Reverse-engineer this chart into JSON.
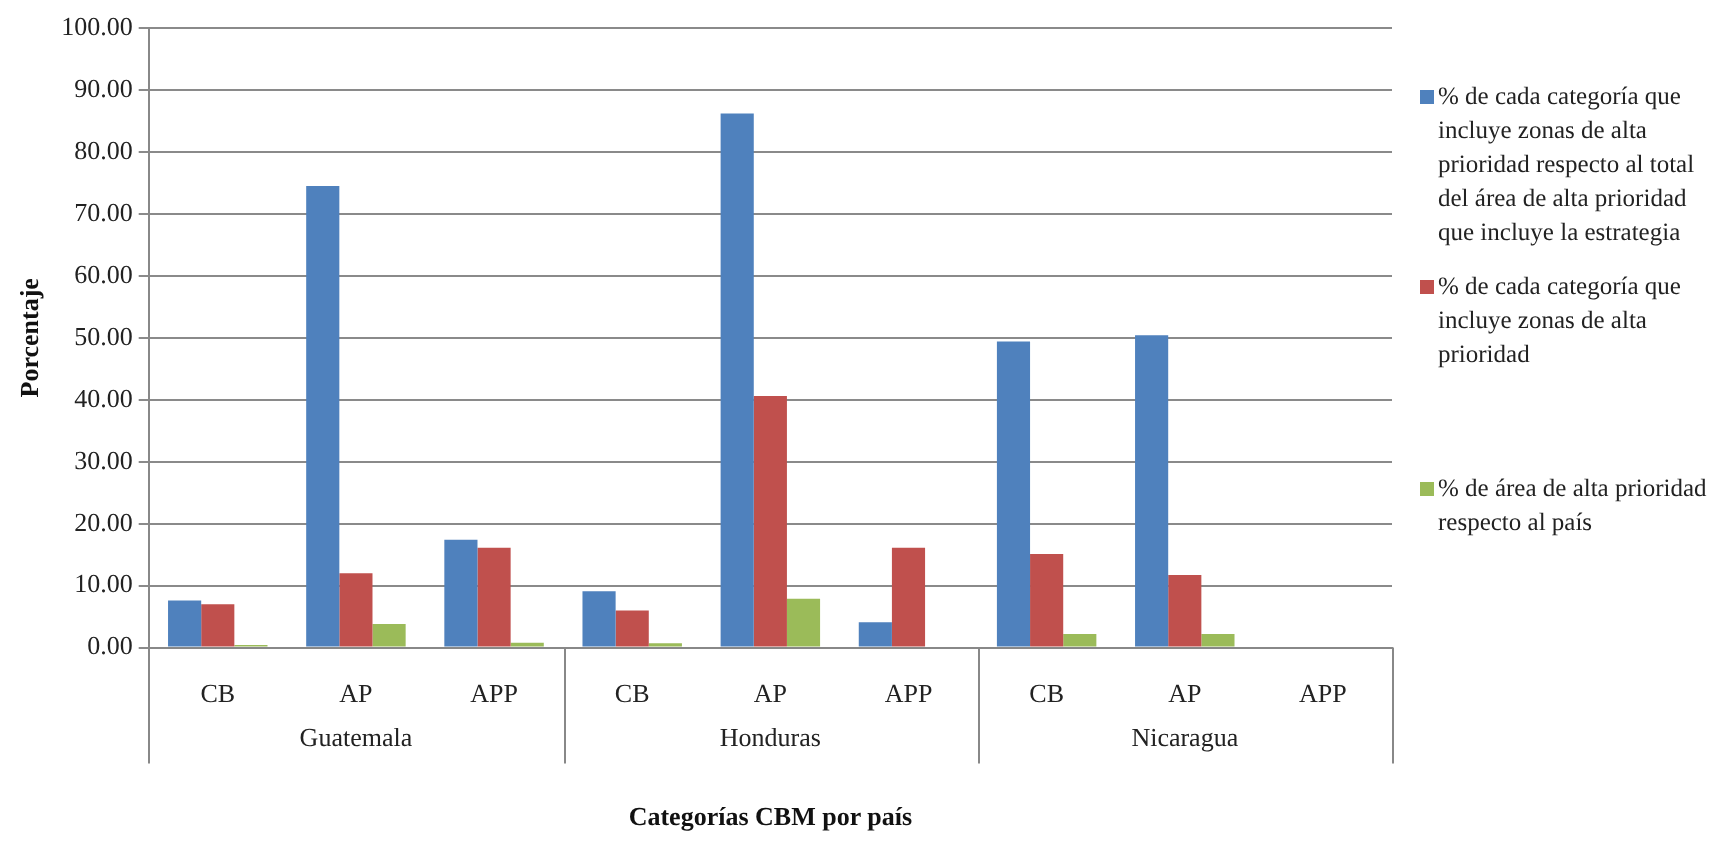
{
  "chart_data": {
    "type": "bar",
    "xlabel": "Categorías CBM por país",
    "ylabel": "Porcentaje",
    "categories": [
      "CB",
      "AP",
      "APP",
      "CB",
      "AP",
      "APP",
      "CB",
      "AP",
      "APP"
    ],
    "annotations": [
      "Guatemala",
      "Honduras",
      "Nicaragua"
    ],
    "series": [
      {
        "name": "% de cada categoría que incluye zonas de alta prioridad respecto al total del área de alta prioridad que incluye la estrategia",
        "color": "#4f81bd",
        "values": [
          7.6,
          74.5,
          17.4,
          9.1,
          86.2,
          4.1,
          49.4,
          50.4,
          null
        ]
      },
      {
        "name": "% de cada categoría que incluye zonas de alta prioridad",
        "color": "#c0504d",
        "values": [
          7.0,
          12.0,
          16.1,
          6.0,
          40.6,
          16.1,
          15.1,
          11.7,
          null
        ]
      },
      {
        "name": "% de área de alta prioridad respecto al país",
        "color": "#9bbb59",
        "values": [
          0.4,
          3.8,
          0.8,
          0.7,
          7.9,
          null,
          2.2,
          2.2,
          null
        ]
      }
    ],
    "ylim": [
      0,
      100
    ],
    "yticks": [
      {
        "value": 0,
        "label": "0.00"
      },
      {
        "value": 10,
        "label": "10.00"
      },
      {
        "value": 20,
        "label": "20.00"
      },
      {
        "value": 30,
        "label": "30.00"
      },
      {
        "value": 40,
        "label": "40.00"
      },
      {
        "value": 50,
        "label": "50.00"
      },
      {
        "value": 60,
        "label": "60.00"
      },
      {
        "value": 70,
        "label": "70.00"
      },
      {
        "value": 80,
        "label": "80.00"
      },
      {
        "value": 90,
        "label": "90.00"
      },
      {
        "value": 100,
        "label": "100.00"
      }
    ],
    "grid": "y",
    "legend": "right"
  }
}
